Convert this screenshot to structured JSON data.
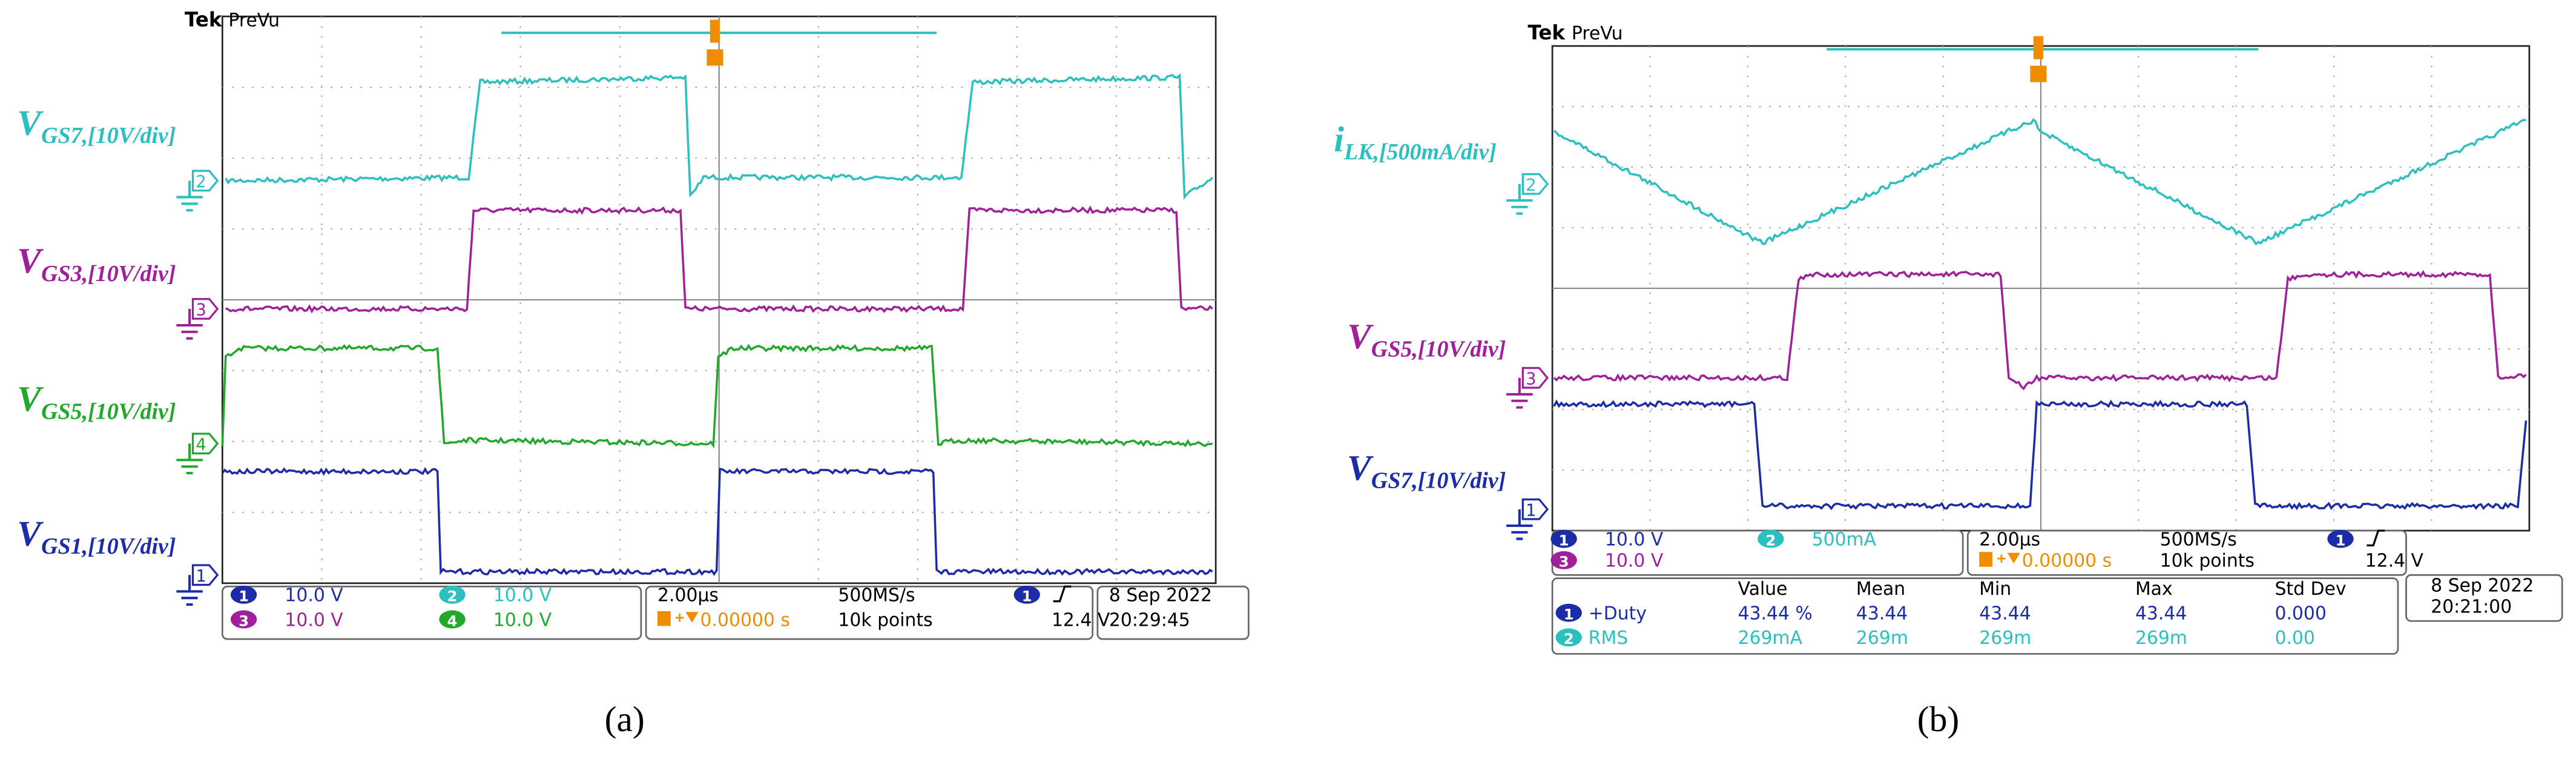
{
  "panels": [
    {
      "brand": "Tek",
      "mode": "PreVu",
      "traces": [
        {
          "symbol": "V",
          "subscript": "GS7,[10V/div]"
        },
        {
          "symbol": "V",
          "subscript": "GS3,[10V/div]"
        },
        {
          "symbol": "V",
          "subscript": "GS5,[10V/div]"
        },
        {
          "symbol": "V",
          "subscript": "GS1,[10V/div]"
        }
      ],
      "markers": [
        "2",
        "3",
        "4",
        "1"
      ],
      "channels": [
        {
          "number": "1",
          "scale": "10.0 V"
        },
        {
          "number": "2",
          "scale": "10.0 V"
        },
        {
          "number": "3",
          "scale": "10.0 V"
        },
        {
          "number": "4",
          "scale": "10.0 V"
        }
      ],
      "timebase": "2.00µs",
      "sample_rate": "500MS/s",
      "trigger_delay": "0.00000 s",
      "record_length": "10k points",
      "trigger_channel": "1",
      "trigger_level": "12.4 V",
      "date": "8 Sep 2022",
      "time": "20:29:45",
      "caption": "(a)"
    },
    {
      "brand": "Tek",
      "mode": "PreVu",
      "traces": [
        {
          "symbol": "i",
          "subscript": "LK,[500mA/div]"
        },
        {
          "symbol": "V",
          "subscript": "GS5,[10V/div]"
        },
        {
          "symbol": "V",
          "subscript": "GS7,[10V/div]"
        }
      ],
      "markers": [
        "2",
        "3",
        "1"
      ],
      "channels": [
        {
          "number": "1",
          "scale": "10.0 V"
        },
        {
          "number": "2",
          "scale": "500mA"
        },
        {
          "number": "3",
          "scale": "10.0 V"
        }
      ],
      "timebase": "2.00µs",
      "sample_rate": "500MS/s",
      "trigger_delay": "0.00000 s",
      "record_length": "10k points",
      "trigger_channel": "1",
      "trigger_level": "12.4 V",
      "measurements": {
        "headers": [
          "Value",
          "Mean",
          "Min",
          "Max",
          "Std Dev"
        ],
        "rows": [
          {
            "channel": "1",
            "name": "+Duty",
            "cells": [
              "43.44 %",
              "43.44",
              "43.44",
              "43.44",
              "0.000"
            ]
          },
          {
            "channel": "2",
            "name": "RMS",
            "cells": [
              "269mA",
              "269m",
              "269m",
              "269m",
              "0.00"
            ]
          }
        ]
      },
      "date": "8 Sep 2022",
      "time": "20:21:00",
      "caption": "(b)"
    }
  ]
}
